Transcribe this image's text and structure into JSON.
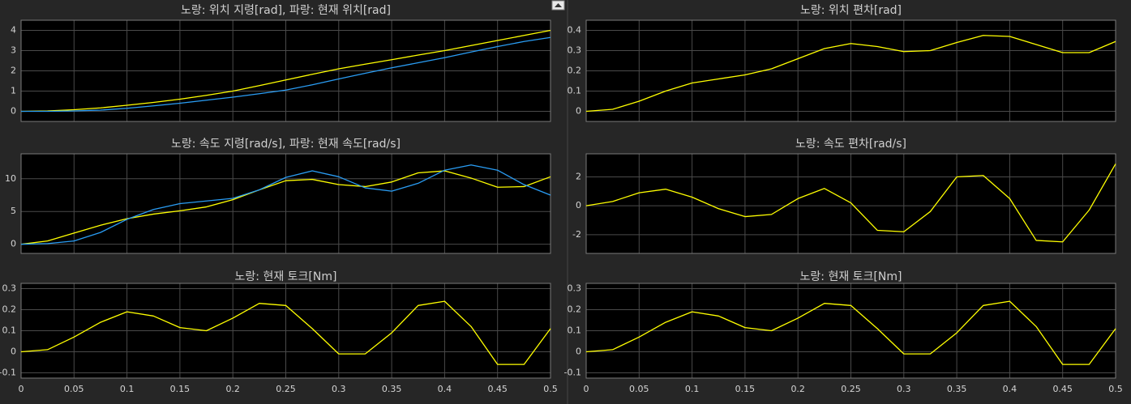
{
  "chart_data": [
    {
      "type": "line",
      "title": "노랑: 위치 지령[rad], 파랑: 현재 위치[rad]",
      "grid": true,
      "x": [
        0,
        0.025,
        0.05,
        0.075,
        0.1,
        0.125,
        0.15,
        0.175,
        0.2,
        0.225,
        0.25,
        0.275,
        0.3,
        0.325,
        0.35,
        0.375,
        0.4,
        0.425,
        0.45,
        0.475,
        0.5
      ],
      "series": [
        {
          "color": "#ffff00",
          "values": [
            0,
            0.02,
            0.08,
            0.17,
            0.3,
            0.44,
            0.6,
            0.79,
            1.0,
            1.27,
            1.55,
            1.83,
            2.1,
            2.33,
            2.55,
            2.78,
            3.0,
            3.25,
            3.5,
            3.75,
            4.0
          ]
        },
        {
          "color": "#2a9df4",
          "values": [
            0,
            0,
            0.02,
            0.06,
            0.15,
            0.27,
            0.4,
            0.55,
            0.7,
            0.87,
            1.05,
            1.31,
            1.6,
            1.88,
            2.15,
            2.4,
            2.65,
            2.93,
            3.2,
            3.45,
            3.65
          ]
        }
      ],
      "xlim": [
        0,
        0.5
      ],
      "xticks": [
        0,
        0.05,
        0.1,
        0.15,
        0.2,
        0.25,
        0.3,
        0.35,
        0.4,
        0.45,
        0.5
      ],
      "ylim": [
        -0.5,
        4.5
      ],
      "yticks": [
        0,
        1,
        2,
        3,
        4
      ]
    },
    {
      "type": "line",
      "title": "노랑: 속도 지령[rad/s], 파랑: 현재 속도[rad/s]",
      "grid": true,
      "x": [
        0,
        0.025,
        0.05,
        0.075,
        0.1,
        0.125,
        0.15,
        0.175,
        0.2,
        0.225,
        0.25,
        0.275,
        0.3,
        0.325,
        0.35,
        0.375,
        0.4,
        0.425,
        0.45,
        0.475,
        0.5
      ],
      "series": [
        {
          "color": "#ffff00",
          "values": [
            0,
            0.5,
            1.7,
            2.9,
            3.9,
            4.6,
            5.1,
            5.7,
            6.8,
            8.3,
            9.7,
            9.9,
            9.1,
            8.8,
            9.5,
            10.9,
            11.2,
            10.1,
            8.7,
            8.8,
            10.3
          ]
        },
        {
          "color": "#2a9df4",
          "values": [
            0,
            0.1,
            0.5,
            1.8,
            3.8,
            5.3,
            6.2,
            6.6,
            7.0,
            8.3,
            10.2,
            11.2,
            10.3,
            8.6,
            8.1,
            9.3,
            11.3,
            12.1,
            11.3,
            9.1,
            7.5
          ]
        }
      ],
      "xlim": [
        0,
        0.5
      ],
      "xticks": [
        0,
        0.05,
        0.1,
        0.15,
        0.2,
        0.25,
        0.3,
        0.35,
        0.4,
        0.45,
        0.5
      ],
      "ylim": [
        -1.4,
        13.8
      ],
      "yticks": [
        0,
        5,
        10
      ]
    },
    {
      "type": "line",
      "title": "노랑: 현재 토크[Nm]",
      "grid": true,
      "x": [
        0,
        0.025,
        0.05,
        0.075,
        0.1,
        0.125,
        0.15,
        0.175,
        0.2,
        0.225,
        0.25,
        0.275,
        0.3,
        0.325,
        0.35,
        0.375,
        0.4,
        0.425,
        0.45,
        0.475,
        0.5
      ],
      "series": [
        {
          "color": "#ffff00",
          "values": [
            0,
            0.01,
            0.07,
            0.14,
            0.19,
            0.17,
            0.115,
            0.1,
            0.16,
            0.23,
            0.22,
            0.11,
            -0.01,
            -0.01,
            0.09,
            0.22,
            0.24,
            0.12,
            -0.06,
            -0.06,
            0.11
          ]
        }
      ],
      "xlim": [
        0,
        0.5
      ],
      "xticks": [
        0,
        0.05,
        0.1,
        0.15,
        0.2,
        0.25,
        0.3,
        0.35,
        0.4,
        0.45,
        0.5
      ],
      "ylim": [
        -0.125,
        0.325
      ],
      "yticks": [
        -0.1,
        0,
        0.1,
        0.2,
        0.3
      ]
    },
    {
      "type": "line",
      "title": "노랑: 위치 편차[rad]",
      "grid": true,
      "x": [
        0,
        0.025,
        0.05,
        0.075,
        0.1,
        0.125,
        0.15,
        0.175,
        0.2,
        0.225,
        0.25,
        0.275,
        0.3,
        0.325,
        0.35,
        0.375,
        0.4,
        0.425,
        0.45,
        0.475,
        0.5
      ],
      "series": [
        {
          "color": "#ffff00",
          "values": [
            0,
            0.01,
            0.05,
            0.1,
            0.14,
            0.16,
            0.18,
            0.21,
            0.26,
            0.31,
            0.335,
            0.32,
            0.295,
            0.3,
            0.34,
            0.375,
            0.37,
            0.33,
            0.29,
            0.29,
            0.345
          ]
        }
      ],
      "xlim": [
        0,
        0.5
      ],
      "xticks": [
        0,
        0.05,
        0.1,
        0.15,
        0.2,
        0.25,
        0.3,
        0.35,
        0.4,
        0.45,
        0.5
      ],
      "ylim": [
        -0.05,
        0.45
      ],
      "yticks": [
        0,
        0.1,
        0.2,
        0.3,
        0.4
      ]
    },
    {
      "type": "line",
      "title": "노랑: 속도 편차[rad/s]",
      "grid": true,
      "x": [
        0,
        0.025,
        0.05,
        0.075,
        0.1,
        0.125,
        0.15,
        0.175,
        0.2,
        0.225,
        0.25,
        0.275,
        0.3,
        0.325,
        0.35,
        0.375,
        0.4,
        0.425,
        0.45,
        0.475,
        0.5
      ],
      "series": [
        {
          "color": "#ffff00",
          "values": [
            0,
            0.3,
            0.9,
            1.15,
            0.6,
            -0.2,
            -0.75,
            -0.6,
            0.5,
            1.2,
            0.2,
            -1.7,
            -1.8,
            -0.4,
            2.0,
            2.1,
            0.5,
            -2.4,
            -2.5,
            -0.3,
            2.9
          ]
        }
      ],
      "xlim": [
        0,
        0.5
      ],
      "xticks": [
        0,
        0.05,
        0.1,
        0.15,
        0.2,
        0.25,
        0.3,
        0.35,
        0.4,
        0.45,
        0.5
      ],
      "ylim": [
        -3.3,
        3.6
      ],
      "yticks": [
        -2,
        0,
        2
      ]
    },
    {
      "type": "line",
      "title": "노랑: 현재 토크[Nm]",
      "grid": true,
      "x": [
        0,
        0.025,
        0.05,
        0.075,
        0.1,
        0.125,
        0.15,
        0.175,
        0.2,
        0.225,
        0.25,
        0.275,
        0.3,
        0.325,
        0.35,
        0.375,
        0.4,
        0.425,
        0.45,
        0.475,
        0.5
      ],
      "series": [
        {
          "color": "#ffff00",
          "values": [
            0,
            0.01,
            0.07,
            0.14,
            0.19,
            0.17,
            0.115,
            0.1,
            0.16,
            0.23,
            0.22,
            0.11,
            -0.01,
            -0.01,
            0.09,
            0.22,
            0.24,
            0.12,
            -0.06,
            -0.06,
            0.11
          ]
        }
      ],
      "xlim": [
        0,
        0.5
      ],
      "xticks": [
        0,
        0.05,
        0.1,
        0.15,
        0.2,
        0.25,
        0.3,
        0.35,
        0.4,
        0.45,
        0.5
      ],
      "ylim": [
        -0.125,
        0.325
      ],
      "yticks": [
        -0.1,
        0,
        0.1,
        0.2,
        0.3
      ]
    }
  ]
}
